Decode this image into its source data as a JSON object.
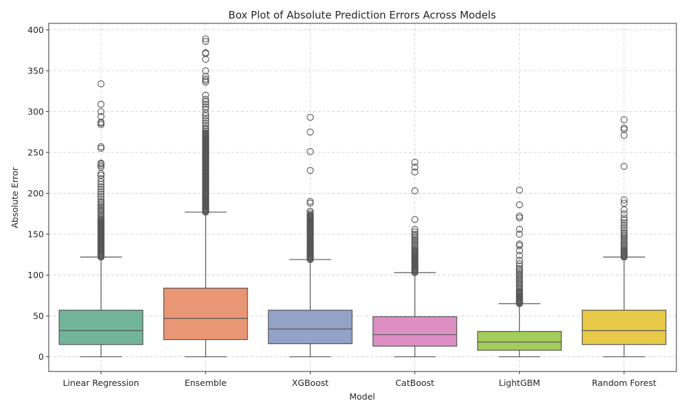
{
  "chart_data": {
    "type": "box",
    "title": "Box Plot of Absolute Prediction Errors Across Models",
    "xlabel": "Model",
    "ylabel": "Absolute Error",
    "ylim": [
      -18,
      408
    ],
    "yticks": [
      0,
      50,
      100,
      150,
      200,
      250,
      300,
      350,
      400
    ],
    "grid": true,
    "categories": [
      "Linear Regression",
      "Ensemble",
      "XGBoost",
      "CatBoost",
      "LightGBM",
      "Random Forest"
    ],
    "series": [
      {
        "color": "#72b59b",
        "whisker_low": 0,
        "q1": 15,
        "median": 32,
        "q3": 57,
        "whisker_high": 122,
        "outliers": [
          122,
          123,
          124,
          125,
          126,
          127,
          128,
          129,
          130,
          131,
          132,
          133,
          134,
          135,
          136,
          137,
          138,
          139,
          140,
          141,
          142,
          143,
          144,
          145,
          146,
          147,
          148,
          149,
          150,
          151,
          152,
          153,
          154,
          155,
          156,
          157,
          158,
          159,
          160,
          161,
          162,
          163,
          164,
          165,
          166,
          167,
          168,
          170,
          172,
          174,
          176,
          178,
          180,
          182,
          184,
          186,
          188,
          190,
          193,
          196,
          199,
          202,
          205,
          208,
          211,
          214,
          218,
          222,
          224,
          232,
          234,
          236,
          237,
          255,
          257,
          284,
          286,
          287,
          294,
          300,
          309,
          334
        ]
      },
      {
        "color": "#e99674",
        "whisker_low": 0,
        "q1": 21,
        "median": 47,
        "q3": 84,
        "whisker_high": 177,
        "outliers": [
          177,
          178,
          179,
          180,
          181,
          182,
          183,
          184,
          185,
          186,
          187,
          188,
          189,
          190,
          191,
          192,
          193,
          194,
          195,
          196,
          197,
          198,
          199,
          200,
          201,
          202,
          203,
          204,
          205,
          206,
          207,
          208,
          209,
          210,
          211,
          212,
          213,
          214,
          215,
          216,
          217,
          218,
          219,
          220,
          221,
          222,
          223,
          224,
          225,
          226,
          227,
          228,
          229,
          230,
          231,
          232,
          233,
          234,
          235,
          236,
          237,
          238,
          239,
          240,
          241,
          242,
          243,
          244,
          245,
          246,
          247,
          248,
          249,
          250,
          251,
          252,
          253,
          254,
          255,
          256,
          257,
          258,
          259,
          260,
          261,
          262,
          263,
          264,
          265,
          266,
          267,
          268,
          269,
          270,
          271,
          272,
          273,
          274,
          276,
          278,
          280,
          283,
          286,
          289,
          292,
          295,
          298,
          303,
          306,
          309,
          312,
          315,
          320,
          336,
          338,
          340,
          343,
          350,
          364,
          371,
          372,
          386,
          389
        ]
      },
      {
        "color": "#93a2c7",
        "whisker_low": 0,
        "q1": 16,
        "median": 34,
        "q3": 57,
        "whisker_high": 119,
        "outliers": [
          119,
          120,
          121,
          122,
          123,
          124,
          125,
          126,
          127,
          128,
          129,
          130,
          131,
          132,
          133,
          134,
          135,
          136,
          137,
          138,
          139,
          140,
          141,
          142,
          143,
          144,
          145,
          146,
          147,
          148,
          149,
          150,
          151,
          152,
          153,
          154,
          155,
          156,
          157,
          158,
          159,
          160,
          161,
          162,
          163,
          164,
          165,
          166,
          167,
          168,
          169,
          170,
          171,
          172,
          173,
          174,
          176,
          178,
          188,
          190,
          228,
          251,
          275,
          293
        ]
      },
      {
        "color": "#dd8fc4",
        "whisker_low": 0,
        "q1": 13,
        "median": 27,
        "q3": 49,
        "whisker_high": 103,
        "outliers": [
          103,
          104,
          105,
          106,
          107,
          108,
          109,
          110,
          111,
          112,
          113,
          114,
          115,
          116,
          117,
          118,
          119,
          120,
          121,
          122,
          123,
          124,
          125,
          126,
          127,
          128,
          129,
          130,
          132,
          134,
          136,
          138,
          140,
          142,
          144,
          146,
          148,
          150,
          153,
          156,
          168,
          203,
          226,
          232,
          238
        ]
      },
      {
        "color": "#a4cd5c",
        "whisker_low": 0,
        "q1": 8,
        "median": 18,
        "q3": 31,
        "whisker_high": 65,
        "outliers": [
          65,
          66,
          67,
          68,
          69,
          70,
          71,
          72,
          73,
          74,
          75,
          76,
          77,
          78,
          79,
          80,
          82,
          84,
          86,
          88,
          90,
          92,
          94,
          96,
          98,
          100,
          102,
          104,
          106,
          108,
          111,
          114,
          118,
          124,
          130,
          136,
          138,
          150,
          156,
          170,
          172,
          186,
          204
        ]
      },
      {
        "color": "#e8c948",
        "whisker_low": 0,
        "q1": 15,
        "median": 32,
        "q3": 57,
        "whisker_high": 122,
        "outliers": [
          122,
          123,
          124,
          125,
          126,
          127,
          128,
          129,
          130,
          132,
          134,
          136,
          138,
          140,
          142,
          144,
          146,
          148,
          150,
          152,
          155,
          158,
          161,
          164,
          167,
          170,
          175,
          180,
          188,
          192,
          233,
          271,
          278,
          280,
          290
        ]
      }
    ]
  }
}
